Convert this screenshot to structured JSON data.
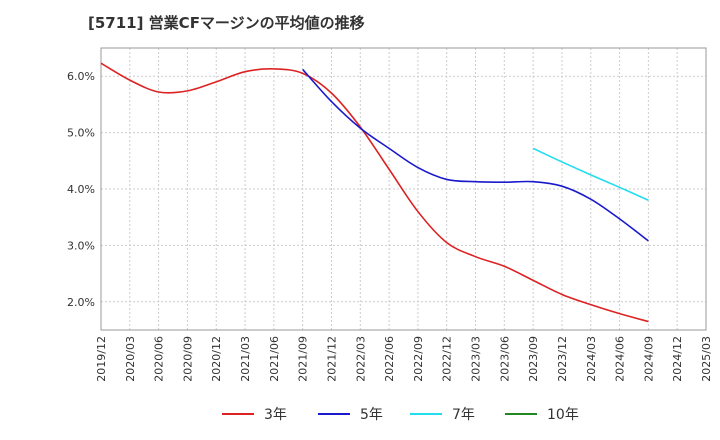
{
  "chart_data": {
    "type": "line",
    "title": "[5711]  営業CFマージンの平均値の推移",
    "xlabel": "",
    "ylabel": "",
    "x": [
      "2019/12",
      "2020/03",
      "2020/06",
      "2020/09",
      "2020/12",
      "2021/03",
      "2021/06",
      "2021/09",
      "2021/12",
      "2022/03",
      "2022/06",
      "2022/09",
      "2022/12",
      "2023/03",
      "2023/06",
      "2023/09",
      "2023/12",
      "2024/03",
      "2024/06",
      "2024/09",
      "2024/12",
      "2025/03"
    ],
    "ylim": [
      1.5,
      6.5
    ],
    "yticks": [
      2.0,
      3.0,
      4.0,
      5.0,
      6.0
    ],
    "ytick_labels": [
      "2.0%",
      "3.0%",
      "4.0%",
      "5.0%",
      "6.0%"
    ],
    "grid": true,
    "legend_position": "bottom",
    "series": [
      {
        "name": "3年",
        "color": "#dd2222",
        "values": [
          6.23,
          5.93,
          5.72,
          5.74,
          5.9,
          6.08,
          6.13,
          6.05,
          5.7,
          5.1,
          4.35,
          3.6,
          3.05,
          2.8,
          2.63,
          2.38,
          2.13,
          1.95,
          1.79,
          1.65,
          null,
          null
        ]
      },
      {
        "name": "5年",
        "color": "#1a1acc",
        "values": [
          null,
          null,
          null,
          null,
          null,
          null,
          null,
          6.12,
          5.55,
          5.08,
          4.72,
          4.38,
          4.17,
          4.13,
          4.12,
          4.13,
          4.05,
          3.82,
          3.47,
          3.08,
          null,
          null
        ]
      },
      {
        "name": "7年",
        "color": "#22ddee",
        "values": [
          null,
          null,
          null,
          null,
          null,
          null,
          null,
          null,
          null,
          null,
          null,
          null,
          null,
          null,
          null,
          4.72,
          4.48,
          4.25,
          4.03,
          3.8,
          null,
          null
        ]
      },
      {
        "name": "10年",
        "color": "#228822",
        "values": [
          null,
          null,
          null,
          null,
          null,
          null,
          null,
          null,
          null,
          null,
          null,
          null,
          null,
          null,
          null,
          null,
          null,
          null,
          null,
          null,
          null,
          null
        ]
      }
    ]
  }
}
